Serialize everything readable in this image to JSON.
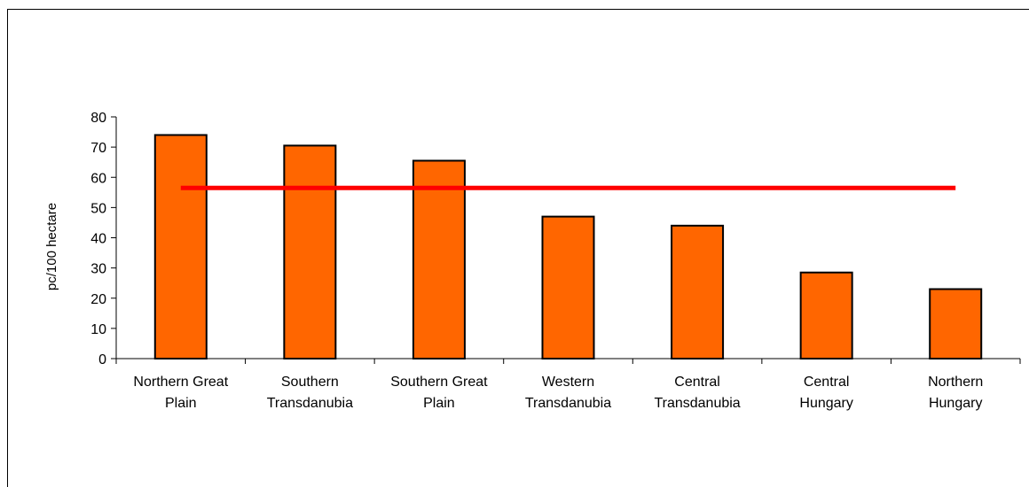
{
  "chart_data": {
    "type": "bar",
    "ylabel": "pc/100 hectare",
    "xlabel": "",
    "ylim": [
      0,
      80
    ],
    "yticks": [
      0,
      10,
      20,
      30,
      40,
      50,
      60,
      70,
      80
    ],
    "categories": [
      [
        "Northern Great",
        "Plain"
      ],
      [
        "Southern",
        "Transdanubia"
      ],
      [
        "Southern Great",
        "Plain"
      ],
      [
        "Western",
        "Transdanubia"
      ],
      [
        "Central",
        "Transdanubia"
      ],
      [
        "Central",
        "Hungary"
      ],
      [
        "Northern",
        "Hungary"
      ]
    ],
    "series": [
      {
        "type": "bar",
        "values": [
          74,
          70.5,
          65.5,
          47,
          44,
          28.5,
          23
        ],
        "color": "#ff6600"
      },
      {
        "type": "line",
        "values": [
          56.5,
          56.5,
          56.5,
          56.5,
          56.5,
          56.5,
          56.5
        ],
        "color": "#ff0000"
      }
    ],
    "grid": false,
    "legend": "none"
  }
}
